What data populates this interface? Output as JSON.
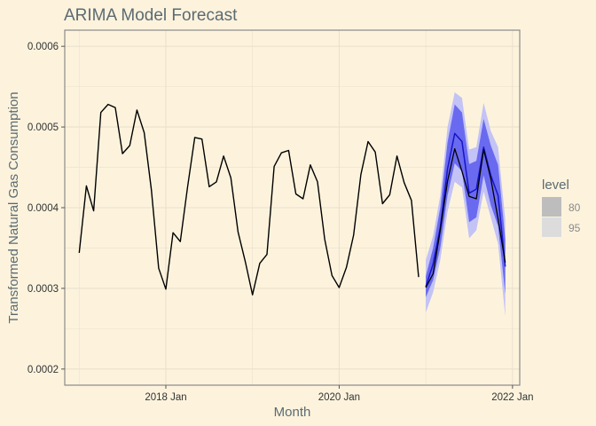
{
  "chart_data": {
    "type": "line",
    "title": "ARIMA Model Forecast",
    "xlabel": "Month",
    "ylabel": "Transformed Natural Gas Consumption",
    "x_ticks": [
      {
        "date": "2018-01",
        "label": "2018 Jan"
      },
      {
        "date": "2020-01",
        "label": "2020 Jan"
      },
      {
        "date": "2022-01",
        "label": "2022 Jan"
      }
    ],
    "y_ticks": [
      {
        "value": 0.0002,
        "label": "0.0002"
      },
      {
        "value": 0.0003,
        "label": "0.0003"
      },
      {
        "value": 0.0004,
        "label": "0.0004"
      },
      {
        "value": 0.0005,
        "label": "0.0005"
      },
      {
        "value": 0.0006,
        "label": "0.0006"
      }
    ],
    "xlim": [
      "2016-11",
      "2022-02"
    ],
    "ylim": [
      0.00018,
      0.00062
    ],
    "grid": true,
    "legend": {
      "title": "level",
      "position": "right",
      "entries": [
        {
          "label": "80",
          "color": "#bdbdbd"
        },
        {
          "label": "95",
          "color": "#dcdcdc"
        }
      ]
    },
    "colors": {
      "history": "#000000",
      "forecast": "#1515c8",
      "band80": "#6a6af0",
      "band95": "#c3c3f5",
      "background": "#fdf3dd",
      "grid": "#e9e1cd"
    },
    "history": {
      "x": [
        "2017-01",
        "2017-02",
        "2017-03",
        "2017-04",
        "2017-05",
        "2017-06",
        "2017-07",
        "2017-08",
        "2017-09",
        "2017-10",
        "2017-11",
        "2017-12",
        "2018-01",
        "2018-02",
        "2018-03",
        "2018-04",
        "2018-05",
        "2018-06",
        "2018-07",
        "2018-08",
        "2018-09",
        "2018-10",
        "2018-11",
        "2018-12",
        "2019-01",
        "2019-02",
        "2019-03",
        "2019-04",
        "2019-05",
        "2019-06",
        "2019-07",
        "2019-08",
        "2019-09",
        "2019-10",
        "2019-11",
        "2019-12",
        "2020-01",
        "2020-02",
        "2020-03",
        "2020-04",
        "2020-05",
        "2020-06",
        "2020-07",
        "2020-08",
        "2020-09",
        "2020-10",
        "2020-11",
        "2020-12"
      ],
      "y": [
        0.000344,
        0.000427,
        0.000396,
        0.000518,
        0.000528,
        0.000524,
        0.000467,
        0.000477,
        0.000521,
        0.000493,
        0.000422,
        0.000325,
        0.000299,
        0.000369,
        0.000358,
        0.000425,
        0.000487,
        0.000485,
        0.000426,
        0.000432,
        0.000464,
        0.000437,
        0.00037,
        0.000333,
        0.000292,
        0.000331,
        0.000342,
        0.000451,
        0.000468,
        0.000471,
        0.000417,
        0.000411,
        0.000453,
        0.000432,
        0.000361,
        0.000316,
        0.000301,
        0.000326,
        0.000366,
        0.000441,
        0.000482,
        0.000469,
        0.000405,
        0.000416,
        0.000464,
        0.000431,
        0.000409,
        0.000314
      ]
    },
    "actual_overlay": {
      "x": [
        "2021-01",
        "2021-02",
        "2021-03",
        "2021-04",
        "2021-05",
        "2021-06",
        "2021-07",
        "2021-08",
        "2021-09",
        "2021-10",
        "2021-11",
        "2021-12"
      ],
      "y": [
        0.000301,
        0.000318,
        0.000372,
        0.000433,
        0.000473,
        0.000445,
        0.000414,
        0.000411,
        0.000472,
        0.000436,
        0.000386,
        0.000332
      ]
    },
    "forecast": {
      "x": [
        "2021-01",
        "2021-02",
        "2021-03",
        "2021-04",
        "2021-05",
        "2021-06",
        "2021-07",
        "2021-08",
        "2021-09",
        "2021-10",
        "2021-11",
        "2021-12"
      ],
      "mean": [
        0.000302,
        0.00033,
        0.000375,
        0.000448,
        0.000492,
        0.000482,
        0.000418,
        0.000423,
        0.000475,
        0.00044,
        0.000415,
        0.000327
      ],
      "lo80": [
        0.000289,
        0.00031,
        0.00035,
        0.000415,
        0.000455,
        0.000445,
        0.000382,
        0.000388,
        0.00044,
        0.000403,
        0.000377,
        0.000293
      ],
      "hi80": [
        0.000315,
        0.00035,
        0.0004,
        0.000481,
        0.000528,
        0.000518,
        0.000454,
        0.000458,
        0.00051,
        0.000477,
        0.000453,
        0.000361
      ],
      "lo95": [
        0.00027,
        0.000295,
        0.000335,
        0.000395,
        0.000432,
        0.000425,
        0.000362,
        0.000372,
        0.00042,
        0.000388,
        0.000355,
        0.000265
      ],
      "hi95": [
        0.000335,
        0.000365,
        0.000415,
        0.0005,
        0.000543,
        0.000536,
        0.000472,
        0.000475,
        0.00053,
        0.000495,
        0.000475,
        0.000385
      ]
    }
  }
}
